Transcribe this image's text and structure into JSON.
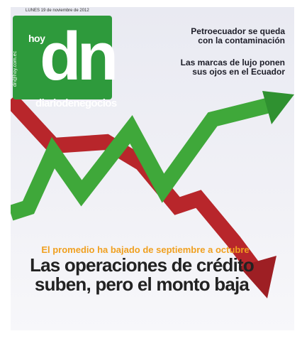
{
  "header": {
    "date": "LUNES 19 de noviembre de 2012",
    "hoy": "hoy",
    "logo": "dn",
    "email": "dn@hoy.com.ec",
    "brand": "diariodenegocios"
  },
  "headlines": [
    {
      "lines": [
        "Petroecuador se queda",
        "con la contaminación"
      ]
    },
    {
      "lines": [
        "Las marcas de lujo ponen",
        "sus ojos en el Ecuador"
      ]
    }
  ],
  "main_story": {
    "kicker": "El promedio ha bajado de septiembre a octubre",
    "title_lines": [
      "Las operaciones de crédito",
      "suben, pero el monto baja"
    ]
  }
}
